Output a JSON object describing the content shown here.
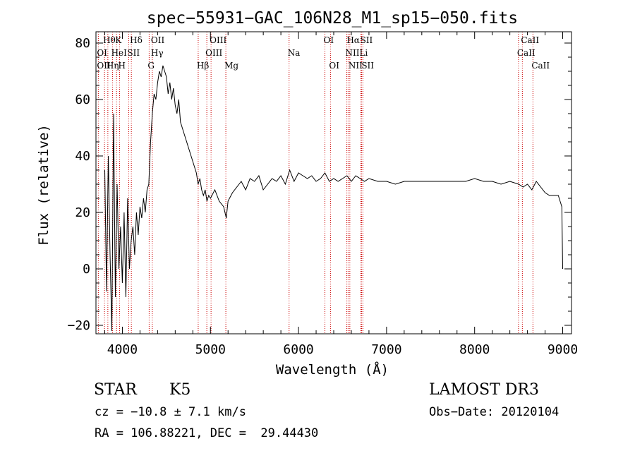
{
  "chart_data": {
    "type": "line",
    "title": "spec−55931−GAC_106N28_M1_sp15−050.fits",
    "xlabel": "Wavelength (Å)",
    "ylabel": "Flux (relative)",
    "xlim": [
      3700,
      9100
    ],
    "ylim": [
      -23,
      84
    ],
    "x_ticks": [
      {
        "value": 4000,
        "label": "4000"
      },
      {
        "value": 5000,
        "label": "5000"
      },
      {
        "value": 6000,
        "label": "6000"
      },
      {
        "value": 7000,
        "label": "7000"
      },
      {
        "value": 8000,
        "label": "8000"
      },
      {
        "value": 9000,
        "label": "9000"
      }
    ],
    "y_ticks": [
      {
        "value": -20,
        "label": "−20"
      },
      {
        "value": 0,
        "label": "0"
      },
      {
        "value": 20,
        "label": "20"
      },
      {
        "value": 40,
        "label": "40"
      },
      {
        "value": 60,
        "label": "60"
      },
      {
        "value": 80,
        "label": "80"
      }
    ],
    "series": [
      {
        "name": "flux",
        "x": [
          3800,
          3820,
          3840,
          3860,
          3880,
          3900,
          3920,
          3940,
          3960,
          3980,
          4000,
          4020,
          4040,
          4060,
          4080,
          4100,
          4120,
          4140,
          4160,
          4180,
          4200,
          4220,
          4240,
          4260,
          4280,
          4300,
          4320,
          4340,
          4360,
          4380,
          4400,
          4420,
          4440,
          4460,
          4480,
          4500,
          4520,
          4540,
          4560,
          4580,
          4600,
          4620,
          4640,
          4660,
          4680,
          4700,
          4720,
          4740,
          4760,
          4780,
          4800,
          4820,
          4840,
          4860,
          4880,
          4900,
          4920,
          4940,
          4960,
          4980,
          5000,
          5050,
          5100,
          5150,
          5180,
          5200,
          5250,
          5300,
          5350,
          5400,
          5450,
          5500,
          5550,
          5600,
          5650,
          5700,
          5750,
          5800,
          5850,
          5900,
          5950,
          6000,
          6050,
          6100,
          6150,
          6200,
          6250,
          6300,
          6350,
          6400,
          6450,
          6500,
          6550,
          6600,
          6650,
          6700,
          6750,
          6800,
          6900,
          7000,
          7100,
          7200,
          7300,
          7400,
          7500,
          7600,
          7700,
          7800,
          7900,
          8000,
          8100,
          8200,
          8300,
          8400,
          8500,
          8550,
          8600,
          8650,
          8700,
          8750,
          8800,
          8850,
          8900,
          8950,
          8970,
          8990,
          9000
        ],
        "y": [
          35,
          -8,
          40,
          5,
          -22,
          55,
          -10,
          30,
          0,
          15,
          -5,
          20,
          -10,
          25,
          0,
          10,
          15,
          5,
          20,
          12,
          22,
          18,
          25,
          20,
          28,
          30,
          45,
          55,
          62,
          60,
          66,
          70,
          68,
          72,
          70,
          68,
          62,
          66,
          60,
          64,
          58,
          55,
          60,
          52,
          50,
          48,
          46,
          44,
          42,
          40,
          38,
          36,
          34,
          30,
          32,
          28,
          26,
          28,
          24,
          26,
          25,
          28,
          24,
          22,
          18,
          24,
          27,
          29,
          31,
          28,
          32,
          31,
          33,
          28,
          30,
          32,
          31,
          33,
          30,
          35,
          31,
          34,
          33,
          32,
          33,
          31,
          32,
          34,
          31,
          32,
          31,
          32,
          33,
          31,
          33,
          32,
          31,
          32,
          31,
          31,
          30,
          31,
          31,
          31,
          31,
          31,
          31,
          31,
          31,
          32,
          31,
          31,
          30,
          31,
          30,
          29,
          30,
          28,
          31,
          29,
          27,
          26,
          26,
          26,
          24,
          22,
          0
        ]
      }
    ],
    "lines_labels": [
      {
        "label": "Hθ",
        "wavelength": 3797,
        "row": 0
      },
      {
        "label": "K",
        "wavelength": 3934,
        "row": 0
      },
      {
        "label": "Hδ",
        "wavelength": 4102,
        "row": 0
      },
      {
        "label": "OII",
        "wavelength": 4340,
        "row": 0
      },
      {
        "label": "OIII",
        "wavelength": 5007,
        "row": 0
      },
      {
        "label": "OI",
        "wavelength": 6300,
        "row": 0
      },
      {
        "label": "Hα",
        "wavelength": 6563,
        "row": 0
      },
      {
        "label": "SII",
        "wavelength": 6717,
        "row": 0
      },
      {
        "label": "CaII",
        "wavelength": 8542,
        "row": 0
      },
      {
        "label": "OI",
        "wavelength": 3727,
        "row": 1
      },
      {
        "label": "HeI",
        "wavelength": 3889,
        "row": 1
      },
      {
        "label": "SII",
        "wavelength": 4072,
        "row": 1
      },
      {
        "label": "Hγ",
        "wavelength": 4340,
        "row": 1
      },
      {
        "label": "OIII",
        "wavelength": 4959,
        "row": 1
      },
      {
        "label": "Na",
        "wavelength": 5893,
        "row": 1
      },
      {
        "label": "NII",
        "wavelength": 6548,
        "row": 1
      },
      {
        "label": "Li",
        "wavelength": 6708,
        "row": 1
      },
      {
        "label": "CaII",
        "wavelength": 8498,
        "row": 1
      },
      {
        "label": "OII",
        "wavelength": 3727,
        "row": 2
      },
      {
        "label": "Hη",
        "wavelength": 3835,
        "row": 2
      },
      {
        "label": "H",
        "wavelength": 3968,
        "row": 2
      },
      {
        "label": "G",
        "wavelength": 4304,
        "row": 2
      },
      {
        "label": "Hβ",
        "wavelength": 4861,
        "row": 2
      },
      {
        "label": "Mg",
        "wavelength": 5175,
        "row": 2
      },
      {
        "label": "OI",
        "wavelength": 6363,
        "row": 2
      },
      {
        "label": "NII",
        "wavelength": 6583,
        "row": 2
      },
      {
        "label": "SII",
        "wavelength": 6731,
        "row": 2
      },
      {
        "label": "CaII",
        "wavelength": 8662,
        "row": 2
      }
    ],
    "marker_wavelengths": [
      3727,
      3797,
      3835,
      3889,
      3934,
      3968,
      4072,
      4102,
      4304,
      4340,
      4861,
      4959,
      5007,
      5175,
      5893,
      6300,
      6363,
      6548,
      6563,
      6583,
      6708,
      6717,
      6731,
      8498,
      8542,
      8662
    ],
    "line_color": "#000000",
    "marker_color": "#cc0000"
  },
  "info": {
    "class": "STAR",
    "subclass": "K5",
    "survey": "LAMOST DR3",
    "cz": "cz = −10.8 ± 7.1 km/s",
    "obs_date": "Obs−Date: 20120104",
    "radec": "RA = 106.88221, DEC =  29.44430"
  }
}
